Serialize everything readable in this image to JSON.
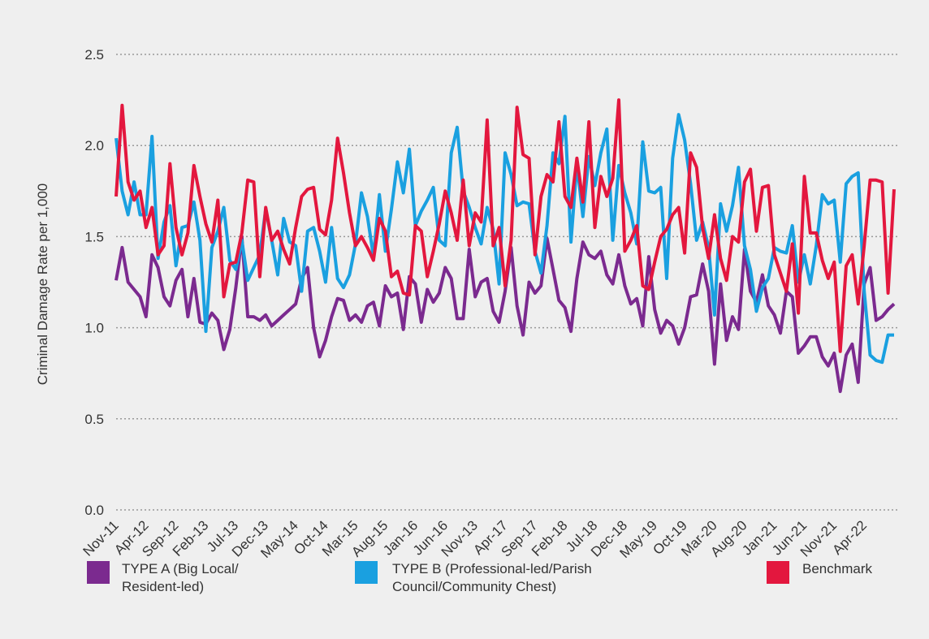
{
  "chart_data": {
    "type": "line",
    "y_label": "Criminal Damage Rate per 1,000",
    "categories": [
      "Nov-11",
      null,
      null,
      null,
      null,
      "Apr-12",
      null,
      null,
      null,
      null,
      "Sep-12",
      null,
      null,
      null,
      null,
      "Feb-13",
      null,
      null,
      null,
      null,
      "Jul-13",
      null,
      null,
      null,
      null,
      "Dec-13",
      null,
      null,
      null,
      null,
      "May-14",
      null,
      null,
      null,
      null,
      "Oct-14",
      null,
      null,
      null,
      null,
      "Mar-15",
      null,
      null,
      null,
      null,
      "Aug-15",
      null,
      null,
      null,
      null,
      "Jan-16",
      null,
      null,
      null,
      null,
      "Jun-16",
      null,
      null,
      null,
      null,
      "Nov-13",
      null,
      null,
      null,
      null,
      "Apr-17",
      null,
      null,
      null,
      null,
      "Sep-17",
      null,
      null,
      null,
      null,
      "Feb-18",
      null,
      null,
      null,
      null,
      "Jul-18",
      null,
      null,
      null,
      null,
      "Dec-18",
      null,
      null,
      null,
      null,
      "May-19",
      null,
      null,
      null,
      null,
      "Oct-19",
      null,
      null,
      null,
      null,
      "Mar-20",
      null,
      null,
      null,
      null,
      "Aug-20",
      null,
      null,
      null,
      null,
      "Jan-21",
      null,
      null,
      null,
      null,
      "Jun-21",
      null,
      null,
      null,
      null,
      "Nov-21",
      null,
      null,
      null,
      null,
      "Apr-22",
      null,
      null,
      null,
      null,
      null
    ],
    "series": [
      {
        "name": "TYPE A (Big Local/ Resident-led)",
        "color": "#7b2a8f",
        "values": [
          1.26,
          1.44,
          1.25,
          1.21,
          1.17,
          1.06,
          1.4,
          1.33,
          1.17,
          1.12,
          1.26,
          1.32,
          1.06,
          1.27,
          1.03,
          1.02,
          1.08,
          1.04,
          0.88,
          0.99,
          1.22,
          1.5,
          1.06,
          1.06,
          1.04,
          1.07,
          1.01,
          1.04,
          1.07,
          1.1,
          1.13,
          1.27,
          1.33,
          1.0,
          0.84,
          0.93,
          1.06,
          1.16,
          1.15,
          1.04,
          1.07,
          1.03,
          1.12,
          1.14,
          1.01,
          1.23,
          1.17,
          1.19,
          0.99,
          1.28,
          1.24,
          1.03,
          1.21,
          1.14,
          1.19,
          1.33,
          1.27,
          1.05,
          1.05,
          1.43,
          1.17,
          1.25,
          1.27,
          1.09,
          1.03,
          1.2,
          1.44,
          1.12,
          0.96,
          1.25,
          1.19,
          1.23,
          1.49,
          1.32,
          1.15,
          1.11,
          0.98,
          1.27,
          1.47,
          1.4,
          1.38,
          1.42,
          1.29,
          1.24,
          1.4,
          1.23,
          1.13,
          1.16,
          1.01,
          1.39,
          1.1,
          0.97,
          1.04,
          1.01,
          0.91,
          1.0,
          1.17,
          1.18,
          1.35,
          1.2,
          0.8,
          1.24,
          0.93,
          1.06,
          0.99,
          1.43,
          1.2,
          1.14,
          1.29,
          1.12,
          1.07,
          0.97,
          1.2,
          1.17,
          0.86,
          0.9,
          0.95,
          0.95,
          0.84,
          0.79,
          0.86,
          0.65,
          0.85,
          0.91,
          0.7,
          1.24,
          1.33,
          1.04,
          1.06,
          1.1,
          1.13
        ]
      },
      {
        "name": "TYPE B (Professional-led/Parish Council/Community Chest)",
        "color": "#1aa0e0",
        "values": [
          2.04,
          1.75,
          1.62,
          1.8,
          1.62,
          1.62,
          2.05,
          1.38,
          1.58,
          1.67,
          1.34,
          1.55,
          1.56,
          1.69,
          1.48,
          0.98,
          1.44,
          1.53,
          1.66,
          1.37,
          1.32,
          1.48,
          1.26,
          1.33,
          1.4,
          1.65,
          1.48,
          1.29,
          1.6,
          1.47,
          1.45,
          1.2,
          1.53,
          1.55,
          1.42,
          1.25,
          1.55,
          1.27,
          1.22,
          1.29,
          1.46,
          1.74,
          1.61,
          1.39,
          1.73,
          1.42,
          1.65,
          1.91,
          1.74,
          1.98,
          1.56,
          1.64,
          1.7,
          1.77,
          1.48,
          1.45,
          1.96,
          2.1,
          1.75,
          1.66,
          1.55,
          1.46,
          1.66,
          1.54,
          1.24,
          1.96,
          1.84,
          1.67,
          1.69,
          1.68,
          1.42,
          1.3,
          1.56,
          1.96,
          1.9,
          2.16,
          1.47,
          1.9,
          1.61,
          1.94,
          1.78,
          1.96,
          2.09,
          1.48,
          1.89,
          1.74,
          1.63,
          1.46,
          2.02,
          1.75,
          1.74,
          1.77,
          1.27,
          1.93,
          2.17,
          2.03,
          1.79,
          1.48,
          1.58,
          1.44,
          1.07,
          1.68,
          1.53,
          1.67,
          1.88,
          1.45,
          1.32,
          1.09,
          1.22,
          1.27,
          1.44,
          1.42,
          1.41,
          1.56,
          1.25,
          1.4,
          1.24,
          1.45,
          1.73,
          1.68,
          1.7,
          1.36,
          1.79,
          1.83,
          1.85,
          1.2,
          0.85,
          0.82,
          0.81,
          0.96,
          0.96
        ]
      },
      {
        "name": "Benchmark",
        "color": "#e3173e",
        "values": [
          1.72,
          2.22,
          1.8,
          1.7,
          1.75,
          1.55,
          1.66,
          1.4,
          1.45,
          1.9,
          1.55,
          1.4,
          1.52,
          1.89,
          1.72,
          1.57,
          1.47,
          1.7,
          1.17,
          1.35,
          1.36,
          1.52,
          1.81,
          1.8,
          1.28,
          1.66,
          1.48,
          1.53,
          1.43,
          1.35,
          1.55,
          1.72,
          1.76,
          1.77,
          1.54,
          1.51,
          1.7,
          2.04,
          1.85,
          1.63,
          1.45,
          1.5,
          1.44,
          1.37,
          1.6,
          1.53,
          1.28,
          1.31,
          1.19,
          1.18,
          1.56,
          1.53,
          1.28,
          1.42,
          1.57,
          1.75,
          1.63,
          1.48,
          1.81,
          1.45,
          1.63,
          1.58,
          2.14,
          1.45,
          1.55,
          1.23,
          1.48,
          2.21,
          1.95,
          1.93,
          1.4,
          1.72,
          1.84,
          1.8,
          2.13,
          1.72,
          1.66,
          1.93,
          1.69,
          2.13,
          1.55,
          1.83,
          1.72,
          1.82,
          2.25,
          1.42,
          1.48,
          1.56,
          1.23,
          1.21,
          1.36,
          1.5,
          1.54,
          1.62,
          1.66,
          1.41,
          1.96,
          1.88,
          1.55,
          1.38,
          1.62,
          1.38,
          1.26,
          1.5,
          1.47,
          1.8,
          1.87,
          1.53,
          1.77,
          1.78,
          1.4,
          1.3,
          1.2,
          1.46,
          1.08,
          1.83,
          1.52,
          1.52,
          1.37,
          1.27,
          1.36,
          0.87,
          1.34,
          1.4,
          1.13,
          1.45,
          1.81,
          1.81,
          1.8,
          1.19,
          1.76
        ]
      }
    ],
    "ylim": [
      0,
      2.5
    ],
    "yticks": [
      {
        "value": 0,
        "label": "0.0"
      },
      0.5,
      {
        "value": 1,
        "label": "1.0"
      },
      1.5,
      {
        "value": 2,
        "label": "2.0"
      },
      2.5
    ],
    "grid": true
  }
}
